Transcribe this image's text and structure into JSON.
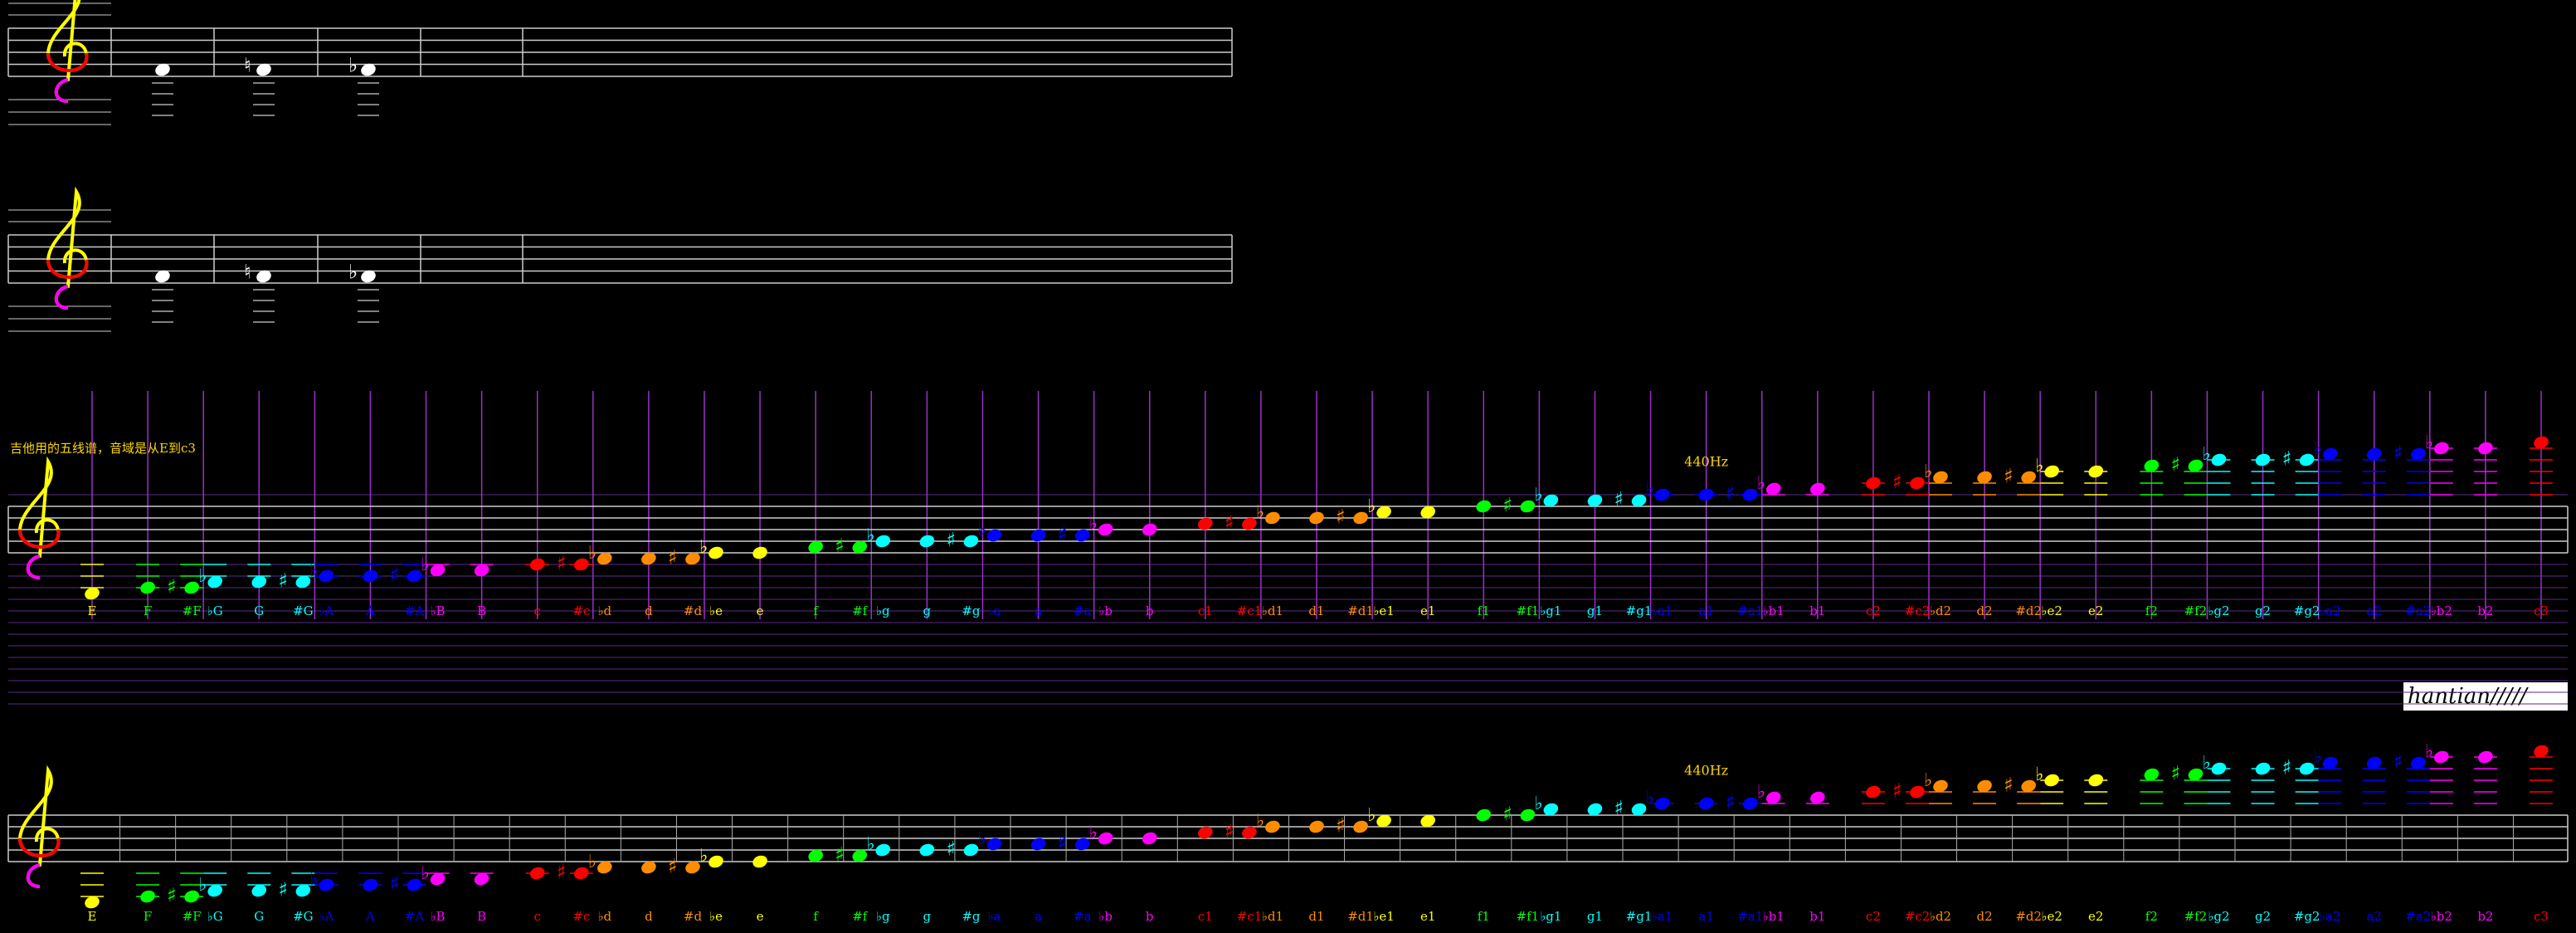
{
  "annotation": "吉他用的五线谱，音域是从E到c3",
  "pitch_marker": "440Hz",
  "signature": "hantian/////",
  "accidentals": {
    "sharp": "♯",
    "flat": "♭",
    "natural": "♮"
  },
  "note_columns": [
    [
      "E"
    ],
    [
      "F"
    ],
    [
      "#F",
      "♭G"
    ],
    [
      "G"
    ],
    [
      "#G",
      "♭A"
    ],
    [
      "A"
    ],
    [
      "#A",
      "♭B"
    ],
    [
      "B"
    ],
    [
      "c"
    ],
    [
      "#c",
      "♭d"
    ],
    [
      "d"
    ],
    [
      "#d",
      "♭e"
    ],
    [
      "e"
    ],
    [
      "f"
    ],
    [
      "#f",
      "♭g"
    ],
    [
      "g"
    ],
    [
      "#g",
      "♭a"
    ],
    [
      "a"
    ],
    [
      "#a",
      "♭b"
    ],
    [
      "b"
    ],
    [
      "c1"
    ],
    [
      "#c1",
      "♭d1"
    ],
    [
      "d1"
    ],
    [
      "#d1",
      "♭e1"
    ],
    [
      "e1"
    ],
    [
      "f1"
    ],
    [
      "#f1",
      "♭g1"
    ],
    [
      "g1"
    ],
    [
      "#g1",
      "♭a1"
    ],
    [
      "a1"
    ],
    [
      "#a1",
      "♭b1"
    ],
    [
      "b1"
    ],
    [
      "c2"
    ],
    [
      "#c2",
      "♭d2"
    ],
    [
      "d2"
    ],
    [
      "#d2",
      "♭e2"
    ],
    [
      "e2"
    ],
    [
      "f2"
    ],
    [
      "#f2",
      "♭g2"
    ],
    [
      "g2"
    ],
    [
      "#g2",
      "♭a2"
    ],
    [
      "a2"
    ],
    [
      "#a2",
      "♭b2"
    ],
    [
      "b2"
    ],
    [
      "c3"
    ]
  ]
}
